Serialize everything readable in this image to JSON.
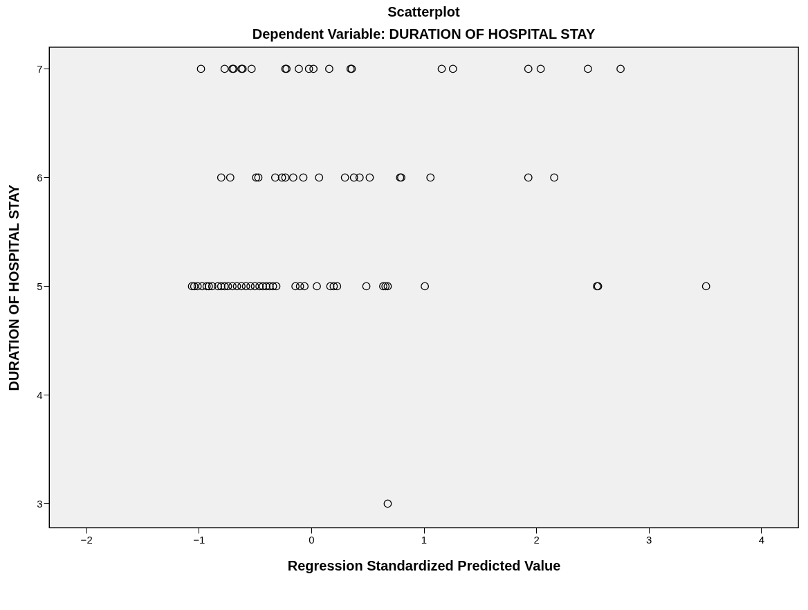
{
  "chart_data": {
    "type": "scatter",
    "title": "Scatterplot",
    "subtitle": "Dependent Variable: DURATION OF HOSPITAL STAY",
    "xlabel": "Regression Standardized Predicted Value",
    "ylabel": "DURATION OF HOSPITAL STAY",
    "x": [
      -0.98,
      -0.77,
      -0.7,
      -0.69,
      -0.62,
      -0.61,
      -0.53,
      -0.23,
      -0.22,
      -0.11,
      -0.02,
      0.02,
      0.16,
      0.35,
      0.36,
      1.16,
      1.26,
      1.93,
      2.04,
      2.46,
      2.75,
      -0.8,
      -0.72,
      -0.49,
      -0.47,
      -0.32,
      -0.26,
      -0.23,
      -0.16,
      -0.07,
      0.07,
      0.3,
      0.38,
      0.43,
      0.52,
      0.79,
      0.8,
      1.06,
      1.93,
      2.16,
      -1.06,
      -1.04,
      -1.01,
      -0.97,
      -0.93,
      -0.91,
      -0.88,
      -0.83,
      -0.8,
      -0.77,
      -0.74,
      -0.7,
      -0.66,
      -0.62,
      -0.58,
      -0.54,
      -0.5,
      -0.46,
      -0.43,
      -0.4,
      -0.37,
      -0.34,
      -0.31,
      -0.14,
      -0.1,
      -0.06,
      0.05,
      0.17,
      0.2,
      0.23,
      0.49,
      0.64,
      0.66,
      0.68,
      1.01,
      2.54,
      2.55,
      3.51,
      0.68
    ],
    "values": [
      7,
      7,
      7,
      7,
      7,
      7,
      7,
      7,
      7,
      7,
      7,
      7,
      7,
      7,
      7,
      7,
      7,
      7,
      7,
      7,
      7,
      6,
      6,
      6,
      6,
      6,
      6,
      6,
      6,
      6,
      6,
      6,
      6,
      6,
      6,
      6,
      6,
      6,
      6,
      6,
      5,
      5,
      5,
      5,
      5,
      5,
      5,
      5,
      5,
      5,
      5,
      5,
      5,
      5,
      5,
      5,
      5,
      5,
      5,
      5,
      5,
      5,
      5,
      5,
      5,
      5,
      5,
      5,
      5,
      5,
      5,
      5,
      5,
      5,
      5,
      5,
      5,
      5,
      3
    ],
    "color": "#000000",
    "marker": "circle",
    "grid": false,
    "xlim": [
      -2.33,
      4.33
    ],
    "xticks": [
      -2,
      -1,
      0,
      1,
      2,
      3,
      4
    ],
    "ylim": [
      2.78,
      7.2
    ],
    "yticks": [
      3,
      4,
      5,
      6,
      7
    ]
  }
}
